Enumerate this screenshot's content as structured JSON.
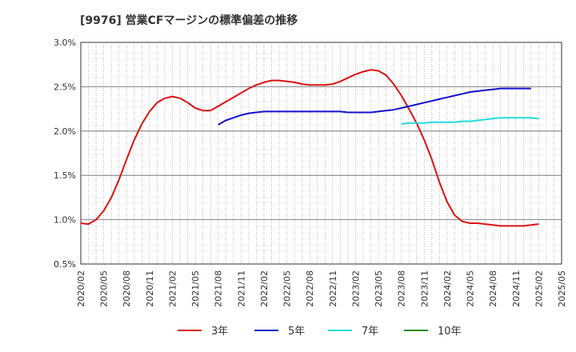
{
  "chart_data": {
    "type": "line",
    "title": "[9976]  営業CFマージンの標準偏差の推移",
    "xlabel": "",
    "ylabel": "",
    "ylim": [
      0.5,
      3.0
    ],
    "xlim": [
      "2020/02",
      "2025/05"
    ],
    "grid": true,
    "legend_position": "bottom",
    "x_ticks": [
      "2020/02",
      "2020/05",
      "2020/08",
      "2020/11",
      "2021/02",
      "2021/05",
      "2021/08",
      "2021/11",
      "2022/02",
      "2022/05",
      "2022/08",
      "2022/11",
      "2023/02",
      "2023/05",
      "2023/08",
      "2023/11",
      "2024/02",
      "2024/05",
      "2024/08",
      "2024/11",
      "2025/02",
      "2025/05"
    ],
    "y_ticks": [
      "0.5%",
      "1.0%",
      "1.5%",
      "2.0%",
      "2.5%",
      "3.0%"
    ],
    "series": [
      {
        "name": "3年",
        "color": "#dd1111",
        "start": "2020/02",
        "values": [
          0.96,
          0.95,
          1.0,
          1.1,
          1.25,
          1.45,
          1.68,
          1.9,
          2.08,
          2.22,
          2.32,
          2.37,
          2.39,
          2.37,
          2.32,
          2.26,
          2.23,
          2.23,
          2.28,
          2.33,
          2.38,
          2.43,
          2.48,
          2.52,
          2.55,
          2.57,
          2.57,
          2.56,
          2.55,
          2.53,
          2.52,
          2.52,
          2.52,
          2.53,
          2.56,
          2.6,
          2.64,
          2.67,
          2.69,
          2.68,
          2.63,
          2.53,
          2.4,
          2.25,
          2.09,
          1.9,
          1.68,
          1.42,
          1.2,
          1.05,
          0.98,
          0.96,
          0.96,
          0.95,
          0.94,
          0.93,
          0.93,
          0.93,
          0.93,
          0.94,
          0.95
        ]
      },
      {
        "name": "5年",
        "color": "#1111cc",
        "start": "2021/08",
        "values": [
          2.07,
          2.12,
          2.15,
          2.18,
          2.2,
          2.21,
          2.22,
          2.22,
          2.22,
          2.22,
          2.22,
          2.22,
          2.22,
          2.22,
          2.22,
          2.22,
          2.22,
          2.21,
          2.21,
          2.21,
          2.21,
          2.22,
          2.23,
          2.24,
          2.26,
          2.28,
          2.3,
          2.32,
          2.34,
          2.36,
          2.38,
          2.4,
          2.42,
          2.44,
          2.45,
          2.46,
          2.47,
          2.48,
          2.48,
          2.48,
          2.48,
          2.48
        ]
      },
      {
        "name": "7年",
        "color": "#22dddd",
        "start": "2023/08",
        "values": [
          2.08,
          2.09,
          2.09,
          2.09,
          2.1,
          2.1,
          2.1,
          2.1,
          2.11,
          2.11,
          2.12,
          2.13,
          2.14,
          2.15,
          2.15,
          2.15,
          2.15,
          2.15,
          2.14
        ]
      },
      {
        "name": "10年",
        "color": "#228822",
        "start": "2023/08",
        "values": []
      }
    ]
  }
}
